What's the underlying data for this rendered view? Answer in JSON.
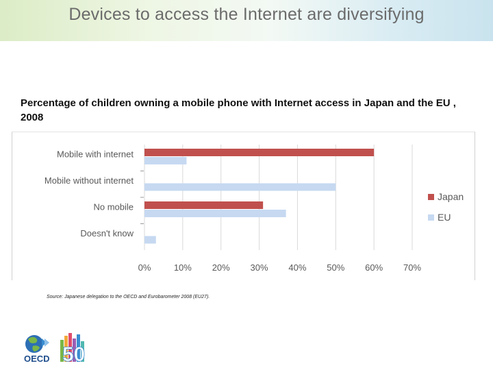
{
  "slide": {
    "title": "Devices to access the Internet are diversifying"
  },
  "chart_data": {
    "type": "bar",
    "orientation": "horizontal",
    "title": "Percentage of children owning a mobile phone with Internet access in Japan and the EU , 2008",
    "categories": [
      "Mobile with internet",
      "Mobile without internet",
      "No mobile",
      "Doesn't know"
    ],
    "series": [
      {
        "name": "Japan",
        "values": [
          60,
          0,
          31,
          0
        ],
        "color": "#c0504d"
      },
      {
        "name": "EU",
        "values": [
          11,
          50,
          37,
          3
        ],
        "color": "#c6d9f1"
      }
    ],
    "xlim": [
      0,
      70
    ],
    "xticks": [
      "0%",
      "10%",
      "20%",
      "30%",
      "40%",
      "50%",
      "60%",
      "70%"
    ],
    "grid": true,
    "legend": "right"
  },
  "source": "Source: Japanese delegation to the OECD and Eurobarometer 2008 (EU27).",
  "logo": {
    "text": "OECD",
    "anniversary": "50"
  }
}
